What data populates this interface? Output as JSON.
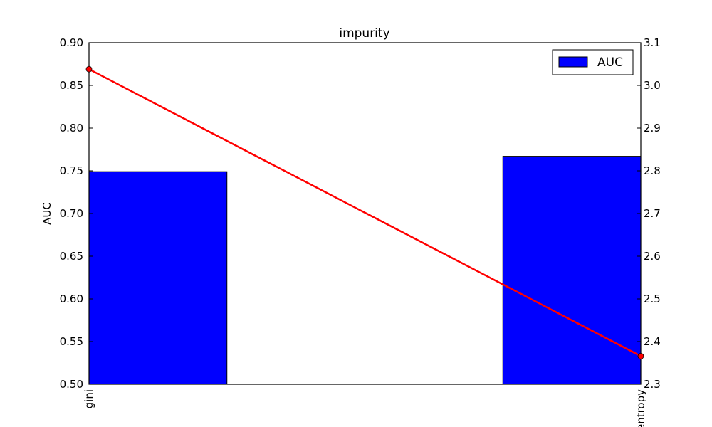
{
  "chart_data": {
    "type": "bar",
    "title": "impurity",
    "categories": [
      "gini",
      "entropy"
    ],
    "xlabel": "",
    "ylabel": "AUC",
    "ylim": [
      0.5,
      0.9
    ],
    "yticks": [
      "0.50",
      "0.55",
      "0.60",
      "0.65",
      "0.70",
      "0.75",
      "0.80",
      "0.85",
      "0.90"
    ],
    "y2lim": [
      2.3,
      3.1
    ],
    "y2ticks": [
      "2.3",
      "2.4",
      "2.5",
      "2.6",
      "2.7",
      "2.8",
      "2.9",
      "3.0",
      "3.1"
    ],
    "series": [
      {
        "name": "AUC",
        "type": "bar",
        "axis": "left",
        "values": [
          0.749,
          0.767
        ],
        "color": "#0000ff"
      },
      {
        "name": "",
        "type": "line",
        "axis": "right",
        "values": [
          3.038,
          2.366
        ],
        "color": "#ff0000"
      }
    ],
    "legend": {
      "position": "top-right",
      "entries": [
        "AUC"
      ]
    }
  }
}
